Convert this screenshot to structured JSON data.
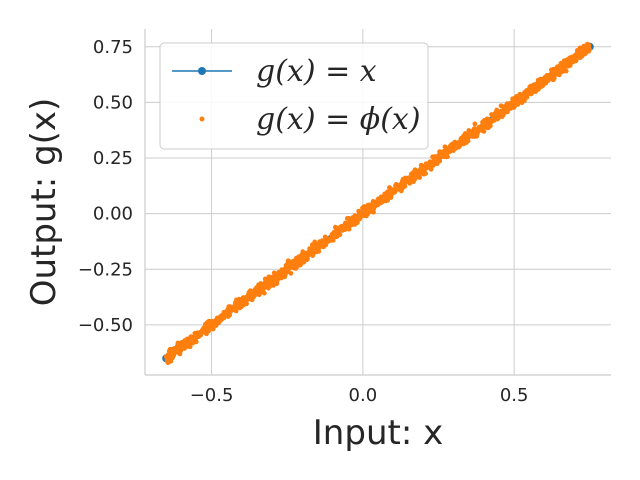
{
  "chart_data": {
    "type": "scatter",
    "xlabel": "Input: x",
    "ylabel": "Output: g(x)",
    "xlim": [
      -0.72,
      0.82
    ],
    "ylim": [
      -0.725,
      0.83
    ],
    "x_ticks": [
      -0.5,
      0.0,
      0.5
    ],
    "x_tick_labels": [
      "−0.5",
      "0.0",
      "0.5"
    ],
    "y_ticks": [
      -0.5,
      -0.25,
      0.0,
      0.25,
      0.5,
      0.75
    ],
    "y_tick_labels": [
      "−0.50",
      "−0.25",
      "0.00",
      "0.25",
      "0.50",
      "0.75"
    ],
    "grid": true,
    "legend_position": "top-left",
    "series": [
      {
        "name": "g(x) = x",
        "kind": "line",
        "color": "#1f77b4",
        "marker": "circle",
        "x": [
          -0.65,
          0.75
        ],
        "y": [
          -0.65,
          0.75
        ]
      },
      {
        "name": "g(x) = ϕ(x)",
        "kind": "scatter",
        "color": "#ff7f0e",
        "marker": "dot",
        "x_range": [
          -0.65,
          0.75
        ],
        "relation": "y ≈ x",
        "noise": 0.012,
        "points": 1400
      }
    ]
  }
}
